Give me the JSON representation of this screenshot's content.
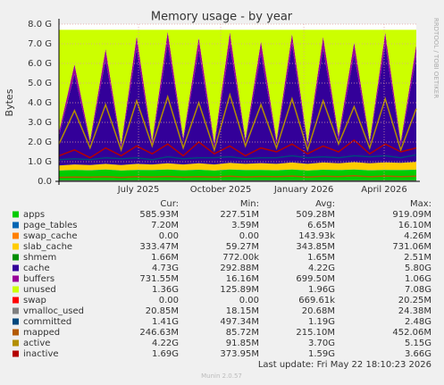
{
  "chart_data": {
    "type": "area",
    "title": "Memory usage - by year",
    "y_label": "Bytes",
    "side_text": "RRDTOOL / TOBI OETIKER",
    "categories": [
      null,
      null,
      null,
      null,
      null,
      null,
      null,
      null,
      null,
      null,
      null,
      null,
      null,
      null,
      null,
      null,
      null,
      null,
      null,
      null,
      null,
      null,
      null,
      null
    ],
    "xlim": [
      0,
      23
    ],
    "xticks": [
      {
        "value": 5.12,
        "label": "July 2025"
      },
      {
        "value": 10.41,
        "label": "October 2025"
      },
      {
        "value": 15.76,
        "label": "January 2026"
      },
      {
        "value": 20.93,
        "label": "April 2026"
      }
    ],
    "ylim": [
      0,
      8000000000.0
    ],
    "yticks": [
      {
        "value": 0,
        "label": "0.0"
      },
      {
        "value": 1000000000.0,
        "label": "1.0 G"
      },
      {
        "value": 2000000000.0,
        "label": "2.0 G"
      },
      {
        "value": 3000000000.0,
        "label": "3.0 G"
      },
      {
        "value": 4000000000.0,
        "label": "4.0 G"
      },
      {
        "value": 5000000000.0,
        "label": "5.0 G"
      },
      {
        "value": 6000000000.0,
        "label": "6.0 G"
      },
      {
        "value": 7000000000.0,
        "label": "7.0 G"
      },
      {
        "value": 8000000000.0,
        "label": "8.0 G"
      }
    ],
    "grid": true,
    "stats_header": [
      "Cur:",
      "Min:",
      "Avg:",
      "Max:"
    ],
    "series": [
      {
        "name": "apps",
        "color": "#00cc00",
        "style": "area",
        "stats": [
          "585.93M",
          "227.51M",
          "509.28M",
          "919.09M"
        ],
        "values": [
          550000000.0,
          580000000.0,
          560000000.0,
          600000000.0,
          550000000.0,
          580000000.0,
          570000000.0,
          600000000.0,
          560000000.0,
          590000000.0,
          550000000.0,
          600000000.0,
          570000000.0,
          580000000.0,
          560000000.0,
          600000000.0,
          550000000.0,
          590000000.0,
          570000000.0,
          600000000.0,
          560000000.0,
          580000000.0,
          570000000.0,
          590000000.0
        ]
      },
      {
        "name": "page_tables",
        "color": "#0066b3",
        "style": "area",
        "stats": [
          "7.20M",
          "3.59M",
          "6.65M",
          "16.10M"
        ],
        "values": [
          7000000.0,
          7000000.0,
          7000000.0,
          7000000.0,
          7000000.0,
          7000000.0,
          7000000.0,
          7000000.0,
          7000000.0,
          7000000.0,
          7000000.0,
          7000000.0,
          7000000.0,
          7000000.0,
          7000000.0,
          7000000.0,
          7000000.0,
          7000000.0,
          7000000.0,
          7000000.0,
          7000000.0,
          7000000.0,
          7000000.0,
          7000000.0
        ]
      },
      {
        "name": "swap_cache",
        "color": "#ff8000",
        "style": "area",
        "stats": [
          "0.00",
          "0.00",
          "143.93k",
          "4.26M"
        ],
        "values": [
          0,
          0,
          0,
          0,
          0,
          0,
          0,
          0,
          0,
          0,
          0,
          0,
          0,
          0,
          0,
          0,
          0,
          0,
          0,
          0,
          0,
          0,
          0,
          0
        ]
      },
      {
        "name": "slab_cache",
        "color": "#ffcc00",
        "style": "area",
        "stats": [
          "333.47M",
          "59.27M",
          "343.85M",
          "731.06M"
        ],
        "values": [
          250000000.0,
          270000000.0,
          260000000.0,
          280000000.0,
          270000000.0,
          300000000.0,
          280000000.0,
          310000000.0,
          290000000.0,
          320000000.0,
          300000000.0,
          330000000.0,
          310000000.0,
          340000000.0,
          320000000.0,
          350000000.0,
          330000000.0,
          360000000.0,
          340000000.0,
          370000000.0,
          350000000.0,
          380000000.0,
          360000000.0,
          390000000.0
        ]
      },
      {
        "name": "shmem",
        "color": "#008f00",
        "style": "area",
        "stats": [
          "1.66M",
          "772.00k",
          "1.65M",
          "2.51M"
        ],
        "values": [
          1700000.0,
          1700000.0,
          1700000.0,
          1700000.0,
          1700000.0,
          1700000.0,
          1700000.0,
          1700000.0,
          1700000.0,
          1700000.0,
          1700000.0,
          1700000.0,
          1700000.0,
          1700000.0,
          1700000.0,
          1700000.0,
          1700000.0,
          1700000.0,
          1700000.0,
          1700000.0,
          1700000.0,
          1700000.0,
          1700000.0,
          1700000.0
        ]
      },
      {
        "name": "cache",
        "color": "#330099",
        "style": "area",
        "stats": [
          "4.73G",
          "292.88M",
          "4.22G",
          "5.80G"
        ],
        "values": [
          1500000000.0,
          4600000000.0,
          1100000000.0,
          5300000000.0,
          900000000.0,
          5900000000.0,
          1000000000.0,
          6100000000.0,
          1200000000.0,
          5800000000.0,
          900000000.0,
          6000000000.0,
          1100000000.0,
          5600000000.0,
          1000000000.0,
          6000000000.0,
          900000000.0,
          5800000000.0,
          1200000000.0,
          5500000000.0,
          1000000000.0,
          6000000000.0,
          900000000.0,
          5400000000.0
        ]
      },
      {
        "name": "buffers",
        "color": "#990099",
        "style": "area",
        "stats": [
          "731.55M",
          "16.16M",
          "699.50M",
          "1.06G"
        ],
        "values": [
          200000000.0,
          500000000.0,
          150000000.0,
          550000000.0,
          150000000.0,
          600000000.0,
          200000000.0,
          600000000.0,
          150000000.0,
          600000000.0,
          200000000.0,
          650000000.0,
          150000000.0,
          600000000.0,
          200000000.0,
          550000000.0,
          150000000.0,
          600000000.0,
          200000000.0,
          600000000.0,
          150000000.0,
          600000000.0,
          200000000.0,
          550000000.0
        ]
      },
      {
        "name": "unused",
        "color": "#ccff00",
        "style": "area",
        "stats": [
          "1.36G",
          "125.89M",
          "1.96G",
          "7.08G"
        ],
        "values": [
          5200000000.0,
          1750000000.0,
          5630000000.0,
          970000000.0,
          5830000000.0,
          320000000.0,
          5650000000.0,
          90000000.0,
          5500000000.0,
          390000000.0,
          5750000000.0,
          120000000.0,
          5570000000.0,
          580000000.0,
          5620000000.0,
          200000000.0,
          5770000000.0,
          350000000.0,
          5390000000.0,
          630000000.0,
          5640000000.0,
          140000000.0,
          5670000000.0,
          770000000.0
        ]
      },
      {
        "name": "swap",
        "color": "#ff0000",
        "style": "area",
        "stats": [
          "0.00",
          "0.00",
          "669.61k",
          "20.25M"
        ],
        "values": [
          0,
          0,
          0,
          0,
          0,
          0,
          0,
          0,
          0,
          0,
          0,
          0,
          0,
          0,
          0,
          0,
          0,
          0,
          0,
          0,
          0,
          0,
          0,
          0
        ]
      },
      {
        "name": "vmalloc_used",
        "color": "#808080",
        "style": "line",
        "stats": [
          "20.85M",
          "18.15M",
          "20.68M",
          "24.38M"
        ],
        "values": [
          21000000.0,
          21000000.0,
          21000000.0,
          21000000.0,
          21000000.0,
          21000000.0,
          21000000.0,
          21000000.0,
          21000000.0,
          21000000.0,
          21000000.0,
          21000000.0,
          21000000.0,
          21000000.0,
          21000000.0,
          21000000.0,
          21000000.0,
          21000000.0,
          21000000.0,
          21000000.0,
          21000000.0,
          21000000.0,
          21000000.0,
          21000000.0
        ]
      },
      {
        "name": "committed",
        "color": "#00487d",
        "style": "line",
        "stats": [
          "1.41G",
          "497.34M",
          "1.19G",
          "2.48G"
        ],
        "values": [
          1100000000.0,
          1150000000.0,
          1100000000.0,
          1200000000.0,
          1150000000.0,
          1200000000.0,
          1100000000.0,
          1250000000.0,
          1150000000.0,
          1200000000.0,
          1200000000.0,
          1250000000.0,
          1150000000.0,
          1200000000.0,
          1200000000.0,
          1300000000.0,
          1200000000.0,
          1250000000.0,
          1200000000.0,
          1300000000.0,
          1250000000.0,
          1300000000.0,
          1200000000.0,
          1350000000.0
        ]
      },
      {
        "name": "mapped",
        "color": "#b35a00",
        "style": "line",
        "stats": [
          "246.63M",
          "85.72M",
          "215.10M",
          "452.06M"
        ],
        "values": [
          200000000.0,
          220000000.0,
          210000000.0,
          230000000.0,
          200000000.0,
          240000000.0,
          220000000.0,
          250000000.0,
          210000000.0,
          240000000.0,
          220000000.0,
          260000000.0,
          220000000.0,
          250000000.0,
          230000000.0,
          270000000.0,
          220000000.0,
          260000000.0,
          240000000.0,
          280000000.0,
          230000000.0,
          270000000.0,
          240000000.0,
          260000000.0
        ]
      },
      {
        "name": "active",
        "color": "#b38f00",
        "style": "line",
        "stats": [
          "4.22G",
          "91.85M",
          "3.70G",
          "5.15G"
        ],
        "values": [
          1900000000.0,
          3600000000.0,
          1700000000.0,
          3900000000.0,
          1600000000.0,
          4100000000.0,
          1800000000.0,
          4300000000.0,
          1700000000.0,
          4000000000.0,
          1600000000.0,
          4400000000.0,
          1800000000.0,
          3900000000.0,
          1700000000.0,
          4200000000.0,
          1600000000.0,
          4100000000.0,
          1900000000.0,
          3800000000.0,
          1700000000.0,
          4200000000.0,
          1600000000.0,
          3700000000.0
        ]
      },
      {
        "name": "inactive",
        "color": "#b30000",
        "style": "line",
        "stats": [
          "1.69G",
          "373.95M",
          "1.59G",
          "3.66G"
        ],
        "values": [
          1300000000.0,
          1600000000.0,
          1200000000.0,
          1700000000.0,
          1300000000.0,
          1800000000.0,
          1400000000.0,
          1900000000.0,
          1300000000.0,
          2000000000.0,
          1400000000.0,
          1800000000.0,
          1300000000.0,
          1700000000.0,
          1500000000.0,
          1900000000.0,
          1400000000.0,
          1800000000.0,
          1500000000.0,
          2100000000.0,
          1400000000.0,
          1900000000.0,
          1500000000.0,
          1700000000.0
        ]
      }
    ],
    "last_update": "Last update: Fri May 22 18:10:23 2026",
    "footer": "Munin 2.0.57"
  }
}
